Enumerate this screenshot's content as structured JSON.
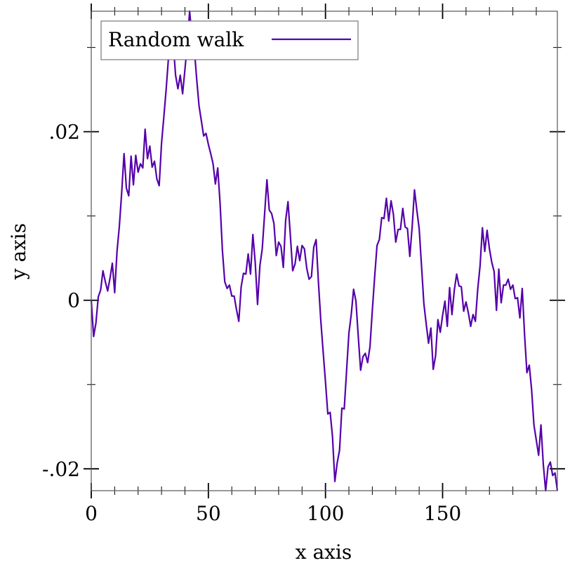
{
  "chart_data": {
    "type": "line",
    "xlabel": "x axis",
    "ylabel": "y axis",
    "xlim": [
      0,
      199
    ],
    "ylim": [
      -0.0226,
      0.0343
    ],
    "x_ticks": [
      0,
      50,
      100,
      150
    ],
    "x_tick_labels": [
      "0",
      "50",
      "100",
      "150"
    ],
    "y_ticks": [
      -0.02,
      0,
      0.02
    ],
    "y_tick_labels": [
      "-.02",
      "0",
      ".02"
    ],
    "grid": false,
    "legend": {
      "placement": "top-left"
    },
    "series": [
      {
        "name": "Random walk",
        "color": "#5500aa",
        "x": [
          0,
          1,
          2,
          3,
          4,
          5,
          6,
          7,
          8,
          9,
          10,
          11,
          12,
          13,
          14,
          15,
          16,
          17,
          18,
          19,
          20,
          21,
          22,
          23,
          24,
          25,
          26,
          27,
          28,
          29,
          30,
          31,
          32,
          33,
          34,
          35,
          36,
          37,
          38,
          39,
          40,
          41,
          42,
          43,
          44,
          45,
          46,
          47,
          48,
          49,
          50,
          51,
          52,
          53,
          54,
          55,
          56,
          57,
          58,
          59,
          60,
          61,
          62,
          63,
          64,
          65,
          66,
          67,
          68,
          69,
          70,
          71,
          72,
          73,
          74,
          75,
          76,
          77,
          78,
          79,
          80,
          81,
          82,
          83,
          84,
          85,
          86,
          87,
          88,
          89,
          90,
          91,
          92,
          93,
          94,
          95,
          96,
          97,
          98,
          99,
          100,
          101,
          102,
          103,
          104,
          105,
          106,
          107,
          108,
          109,
          110,
          111,
          112,
          113,
          114,
          115,
          116,
          117,
          118,
          119,
          120,
          121,
          122,
          123,
          124,
          125,
          126,
          127,
          128,
          129,
          130,
          131,
          132,
          133,
          134,
          135,
          136,
          137,
          138,
          139,
          140,
          141,
          142,
          143,
          144,
          145,
          146,
          147,
          148,
          149,
          150,
          151,
          152,
          153,
          154,
          155,
          156,
          157,
          158,
          159,
          160,
          161,
          162,
          163,
          164,
          165,
          166,
          167,
          168,
          169,
          170,
          171,
          172,
          173,
          174,
          175,
          176,
          177,
          178,
          179,
          180,
          181,
          182,
          183,
          184,
          185,
          186,
          187,
          188,
          189,
          190,
          191,
          192,
          193,
          194,
          195,
          196,
          197,
          198,
          199
        ],
        "values": [
          0.0,
          -0.0043,
          -0.0027,
          0.0004,
          0.0012,
          0.0035,
          0.0022,
          0.0011,
          0.0026,
          0.0044,
          0.0009,
          0.0058,
          0.0088,
          0.0128,
          0.0174,
          0.0133,
          0.0124,
          0.0171,
          0.0137,
          0.0172,
          0.0152,
          0.0162,
          0.0157,
          0.0203,
          0.0168,
          0.0183,
          0.0158,
          0.0165,
          0.0144,
          0.0136,
          0.0186,
          0.0218,
          0.0251,
          0.0289,
          0.0294,
          0.0305,
          0.0267,
          0.0251,
          0.0267,
          0.0245,
          0.0274,
          0.0304,
          0.0343,
          0.0312,
          0.0298,
          0.0263,
          0.0231,
          0.0213,
          0.0195,
          0.0198,
          0.0185,
          0.0174,
          0.0162,
          0.0138,
          0.0157,
          0.0115,
          0.0059,
          0.0022,
          0.0014,
          0.0018,
          0.0005,
          0.0005,
          -0.0011,
          -0.0025,
          0.0016,
          0.0032,
          0.0031,
          0.0055,
          0.0031,
          0.0078,
          0.0045,
          -0.0005,
          0.0041,
          0.0061,
          0.0102,
          0.0143,
          0.0107,
          0.0103,
          0.0091,
          0.0053,
          0.0069,
          0.0064,
          0.0039,
          0.0095,
          0.0117,
          0.0077,
          0.0035,
          0.0043,
          0.0064,
          0.0047,
          0.0065,
          0.0061,
          0.0038,
          0.0025,
          0.0028,
          0.0063,
          0.0072,
          0.0021,
          -0.0024,
          -0.0061,
          -0.0097,
          -0.0135,
          -0.0133,
          -0.0162,
          -0.0215,
          -0.0193,
          -0.0178,
          -0.0128,
          -0.0129,
          -0.0084,
          -0.0039,
          -0.0017,
          0.0013,
          -0.0001,
          -0.0043,
          -0.0083,
          -0.0067,
          -0.0063,
          -0.0074,
          -0.0055,
          -0.0012,
          0.0028,
          0.0065,
          0.0072,
          0.0098,
          0.0097,
          0.0121,
          0.0094,
          0.0118,
          0.0102,
          0.0069,
          0.0084,
          0.0084,
          0.0109,
          0.0087,
          0.0085,
          0.0052,
          0.0087,
          0.0131,
          0.0107,
          0.0085,
          0.0041,
          -0.0004,
          -0.0028,
          -0.0051,
          -0.0033,
          -0.0082,
          -0.0066,
          -0.0023,
          -0.0038,
          -0.0018,
          -0.0001,
          -0.0031,
          0.0015,
          -0.0017,
          0.0012,
          0.0031,
          0.0017,
          0.0016,
          -0.0013,
          -0.0002,
          -0.0015,
          -0.0031,
          -0.0017,
          -0.0025,
          0.0013,
          0.0041,
          0.0086,
          0.0058,
          0.0083,
          0.0061,
          0.0045,
          0.0034,
          -0.0012,
          0.0037,
          -0.0003,
          0.0018,
          0.0018,
          0.0025,
          0.0013,
          0.0018,
          0.0002,
          0.0003,
          -0.0021,
          0.0014,
          -0.0041,
          -0.0086,
          -0.0077,
          -0.0106,
          -0.0148,
          -0.0166,
          -0.0184,
          -0.0148,
          -0.0195,
          -0.0226,
          -0.0198,
          -0.0192,
          -0.0208,
          -0.0205,
          -0.0226
        ]
      }
    ]
  }
}
